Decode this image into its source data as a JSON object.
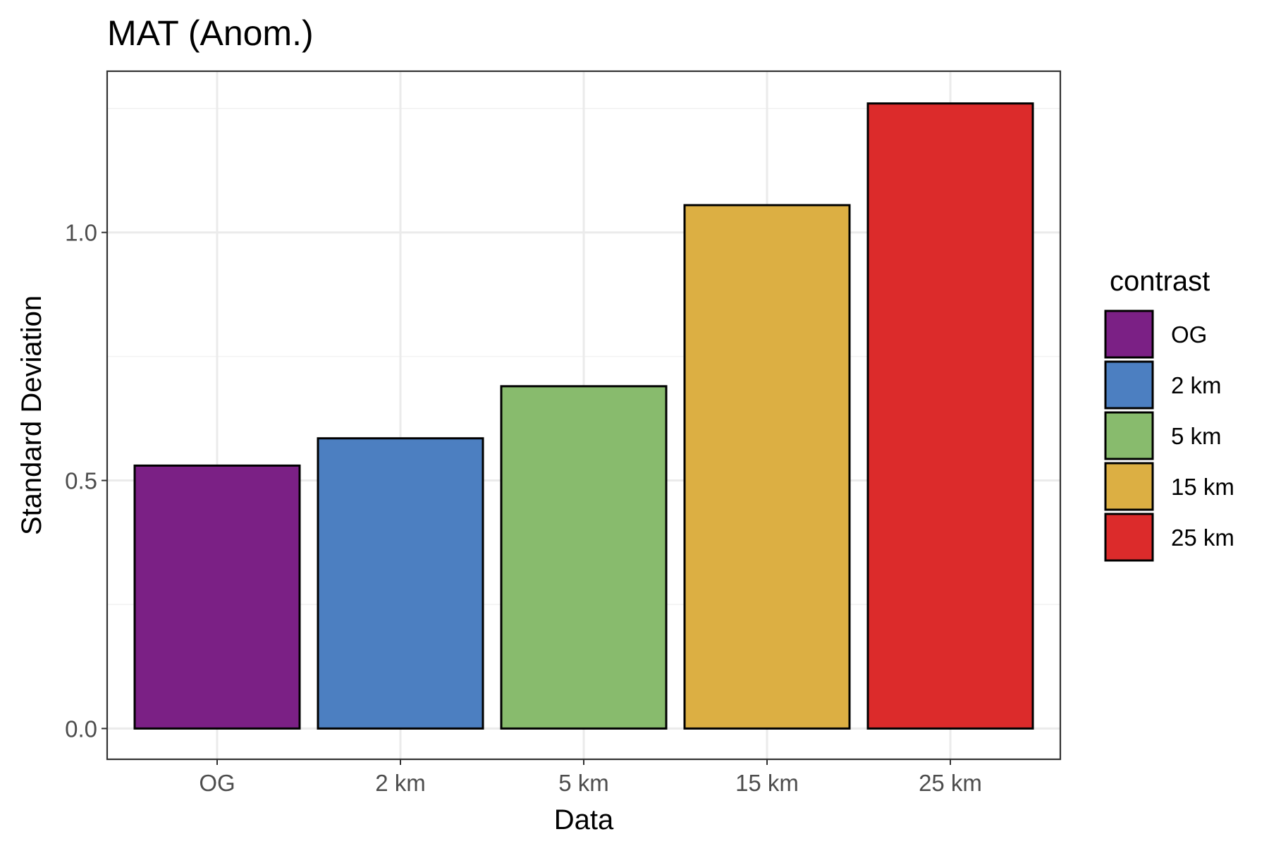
{
  "chart_data": {
    "type": "bar",
    "title": "MAT (Anom.)",
    "xlabel": "Data",
    "ylabel": "Standard Deviation",
    "categories": [
      "OG",
      "2 km",
      "5 km",
      "15 km",
      "25 km"
    ],
    "values": [
      0.53,
      0.585,
      0.69,
      1.055,
      1.26
    ],
    "colors": [
      "#7b2085",
      "#4c7fc1",
      "#88bb6d",
      "#dcaf43",
      "#dc2b2b"
    ],
    "ylim": [
      -0.062,
      1.325
    ],
    "yticks": [
      0.0,
      0.5,
      1.0
    ],
    "ytick_labels": [
      "0.0",
      "0.5",
      "1.0"
    ],
    "grid": true,
    "legend": {
      "title": "contrast",
      "position": "right",
      "entries": [
        "OG",
        "2 km",
        "5 km",
        "15 km",
        "25 km"
      ]
    }
  }
}
